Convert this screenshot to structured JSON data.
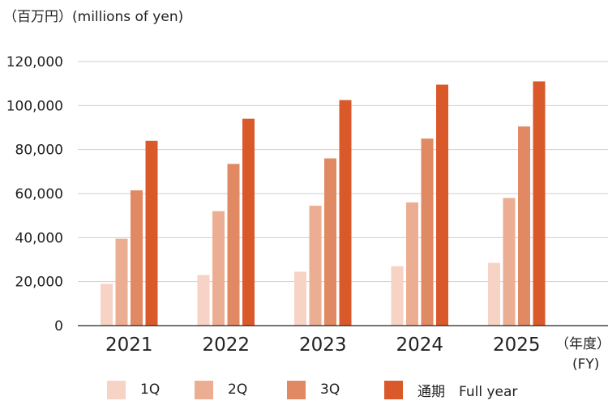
{
  "chart_data": {
    "type": "bar",
    "unit_label": "（百万円）(millions of yen)",
    "xlabel_line1": "（年度）",
    "xlabel_line2": "(FY)",
    "categories": [
      "2021",
      "2022",
      "2023",
      "2024",
      "2025"
    ],
    "series": [
      {
        "name": "1Q",
        "color": "#f6d3c5",
        "values": [
          19000,
          23000,
          24500,
          27000,
          28500
        ]
      },
      {
        "name": "2Q",
        "color": "#ecae92",
        "values": [
          39500,
          52000,
          54500,
          56000,
          58000
        ]
      },
      {
        "name": "3Q",
        "color": "#e08963",
        "values": [
          61500,
          73500,
          76000,
          85000,
          90500
        ]
      },
      {
        "name": "通期　Full year",
        "color": "#d9592a",
        "values": [
          84000,
          94000,
          102500,
          109500,
          111000
        ]
      }
    ],
    "y_ticks": [
      "0",
      "20,000",
      "40,000",
      "60,000",
      "80,000",
      "100,000",
      "120,000"
    ],
    "ylim": [
      0,
      120000
    ],
    "grid": true,
    "legend_position": "bottom"
  }
}
